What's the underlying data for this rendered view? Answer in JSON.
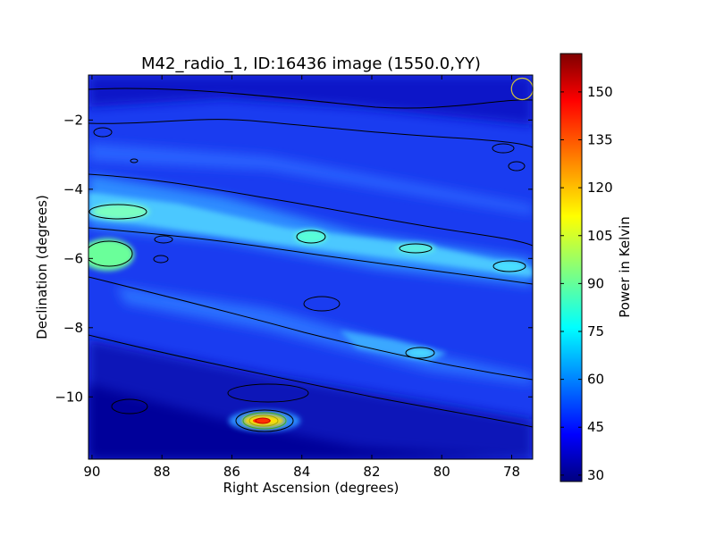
{
  "chart_data": {
    "type": "heatmap",
    "title": "M42_radio_1, ID:16436 image (1550.0,YY)",
    "xlabel": "Right Ascension (degrees)",
    "ylabel": "Declination (degrees)",
    "xlim": [
      90.1,
      77.4
    ],
    "ylim": [
      -11.8,
      -0.7
    ],
    "x_ticks": [
      90,
      88,
      86,
      84,
      82,
      80,
      78
    ],
    "y_ticks": [
      -2,
      -4,
      -6,
      -8,
      -10
    ],
    "colorbar": {
      "label": "Power in Kelvin",
      "range": [
        28,
        162
      ],
      "ticks": [
        30,
        45,
        60,
        75,
        90,
        105,
        120,
        135,
        150
      ],
      "colormap": "jet"
    },
    "beam_marker": {
      "ra": 77.7,
      "dec": -1.1,
      "color": "#d4c63a"
    },
    "features": [
      {
        "ra": 85.2,
        "dec": -10.7,
        "power": 160
      },
      {
        "ra": 90.0,
        "dec": -5.8,
        "power": 95
      },
      {
        "ra": 89.5,
        "dec": -4.6,
        "power": 85
      },
      {
        "ra": 83.8,
        "dec": -5.4,
        "power": 75
      },
      {
        "ra": 80.9,
        "dec": -5.8,
        "power": 72
      },
      {
        "ra": 78.3,
        "dec": -6.4,
        "power": 68
      }
    ]
  }
}
